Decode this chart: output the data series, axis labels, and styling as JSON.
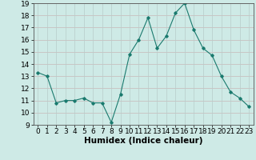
{
  "x": [
    0,
    1,
    2,
    3,
    4,
    5,
    6,
    7,
    8,
    9,
    10,
    11,
    12,
    13,
    14,
    15,
    16,
    17,
    18,
    19,
    20,
    21,
    22,
    23
  ],
  "y": [
    13.3,
    13.0,
    10.8,
    11.0,
    11.0,
    11.2,
    10.8,
    10.8,
    9.2,
    11.5,
    14.8,
    16.0,
    17.8,
    15.3,
    16.3,
    18.2,
    19.0,
    16.8,
    15.3,
    14.7,
    13.0,
    11.7,
    11.2,
    10.5
  ],
  "xlabel": "Humidex (Indice chaleur)",
  "ylim": [
    9,
    19
  ],
  "xlim": [
    -0.5,
    23.5
  ],
  "yticks": [
    9,
    10,
    11,
    12,
    13,
    14,
    15,
    16,
    17,
    18,
    19
  ],
  "xticks": [
    0,
    1,
    2,
    3,
    4,
    5,
    6,
    7,
    8,
    9,
    10,
    11,
    12,
    13,
    14,
    15,
    16,
    17,
    18,
    19,
    20,
    21,
    22,
    23
  ],
  "line_color": "#1a7a6e",
  "marker_color": "#1a7a6e",
  "bg_color": "#ceeae6",
  "grid_color_h": "#c8b8b8",
  "grid_color_v": "#b8ccca",
  "tick_label_fontsize": 6.5,
  "xlabel_fontsize": 7.5
}
